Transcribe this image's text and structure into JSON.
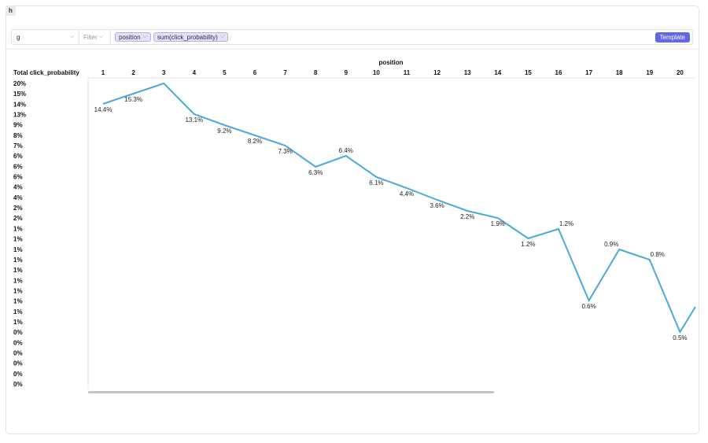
{
  "tab": {
    "label": "h"
  },
  "toolbar": {
    "table_value": "g",
    "filter_placeholder": "Filter",
    "dimension_pill": "position",
    "measure_pill": "sum(click_probability)",
    "template_label": "Template"
  },
  "chart_data": {
    "type": "line",
    "title": "",
    "xlabel": "position",
    "ylabel": "Total click_probability",
    "categories": [
      "1",
      "2",
      "3",
      "4",
      "5",
      "6",
      "7",
      "8",
      "9",
      "10",
      "11",
      "12",
      "13",
      "14",
      "15",
      "16",
      "17",
      "18",
      "19",
      "20"
    ],
    "series": [
      {
        "values": [
          14.4,
          15.3,
          16.3,
          13.1,
          9.2,
          8.2,
          7.3,
          6.3,
          6.4,
          6.1,
          4.4,
          3.6,
          2.2,
          1.9,
          1.2,
          1.2,
          0.6,
          0.9,
          0.8,
          0.5
        ],
        "labels": [
          "14.4%",
          "15.3%",
          "",
          "13.1%",
          "9.2%",
          "8.2%",
          "7.3%",
          "6.3%",
          "6.4%",
          "6.1%",
          "4.4%",
          "3.6%",
          "2.2%",
          "1.9%",
          "1.2%",
          "1.2%",
          "0.6%",
          "0.9%",
          "0.8%",
          "0.5%"
        ],
        "color": "#4aa8dd"
      }
    ],
    "y_tick_labels": [
      "20%",
      "15%",
      "14%",
      "13%",
      "9%",
      "8%",
      "7%",
      "6%",
      "6%",
      "6%",
      "4%",
      "4%",
      "2%",
      "2%",
      "1%",
      "1%",
      "1%",
      "1%",
      "1%",
      "1%",
      "1%",
      "1%",
      "1%",
      "1%",
      "0%",
      "0%",
      "0%",
      "0%",
      "0%",
      "0%"
    ],
    "grid": false,
    "legend": "none"
  }
}
